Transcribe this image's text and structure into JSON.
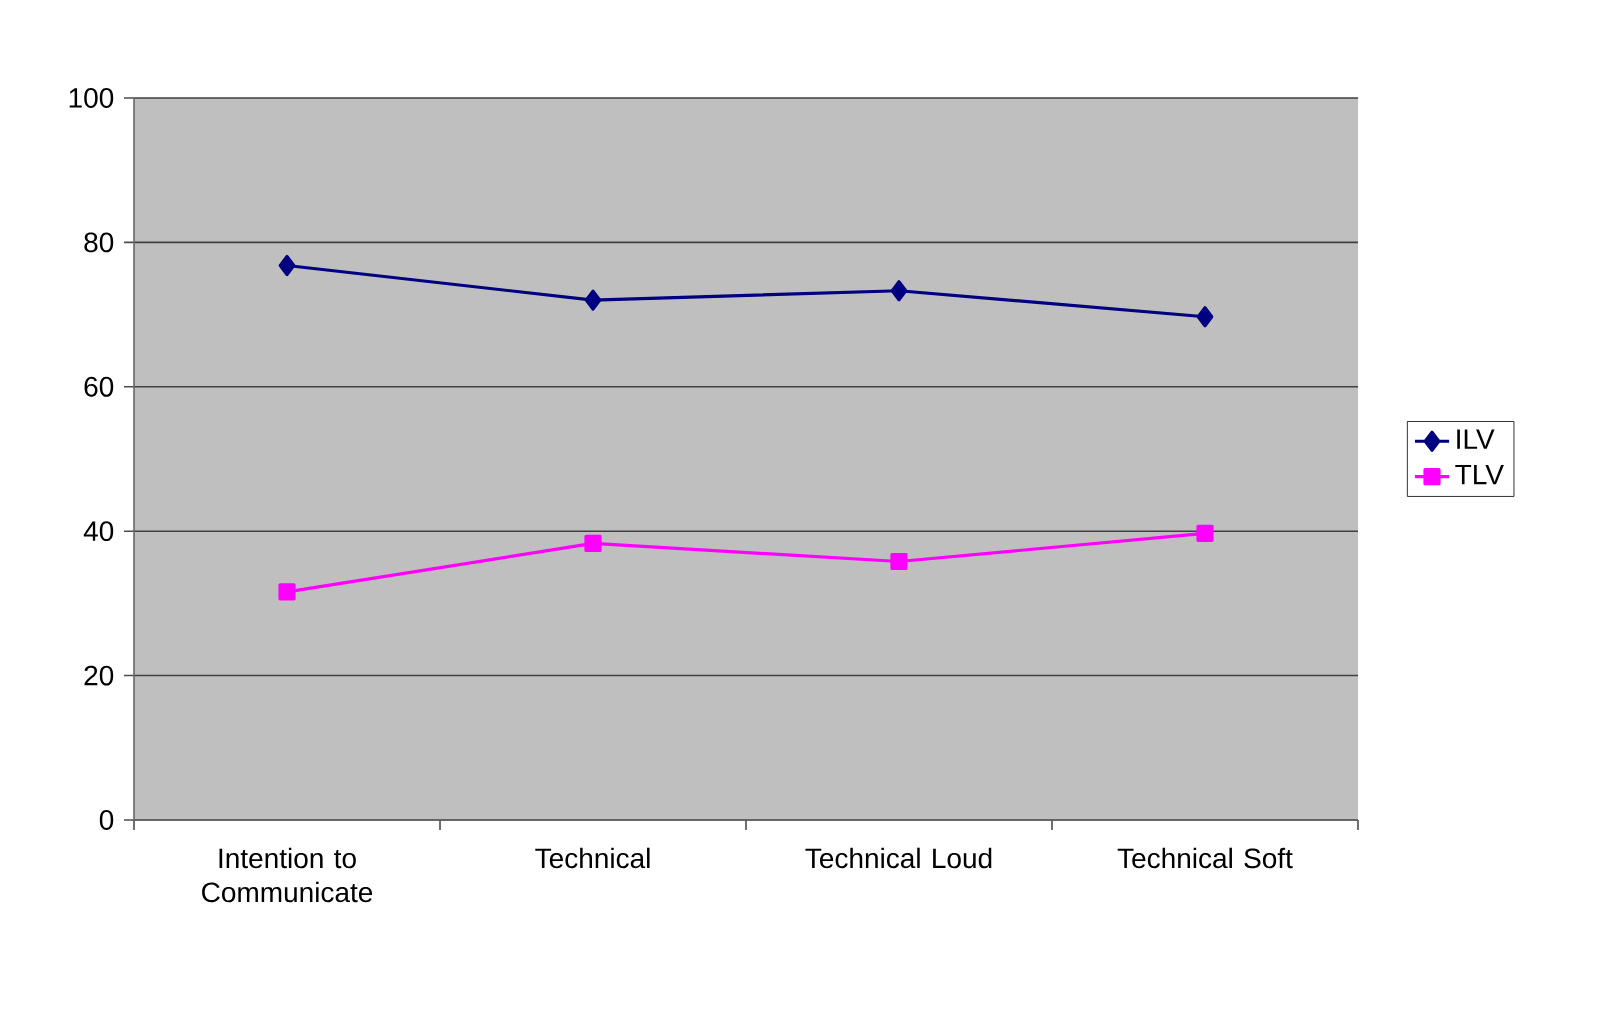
{
  "chart_data": {
    "type": "line",
    "categories": [
      "Intention to Communicate",
      "Technical",
      "Technical Loud",
      "Technical Soft"
    ],
    "series": [
      {
        "name": "ILV",
        "color": "#000080",
        "marker": "diamond",
        "values": [
          76.8,
          72.0,
          73.3,
          69.7
        ]
      },
      {
        "name": "TLV",
        "color": "#ff00ff",
        "marker": "square",
        "values": [
          31.6,
          38.3,
          35.8,
          39.7
        ]
      }
    ],
    "ylim": [
      0,
      100
    ],
    "yticks": [
      0,
      20,
      40,
      60,
      80,
      100
    ],
    "grid": "y",
    "legend": "right",
    "line_style": "solid"
  }
}
